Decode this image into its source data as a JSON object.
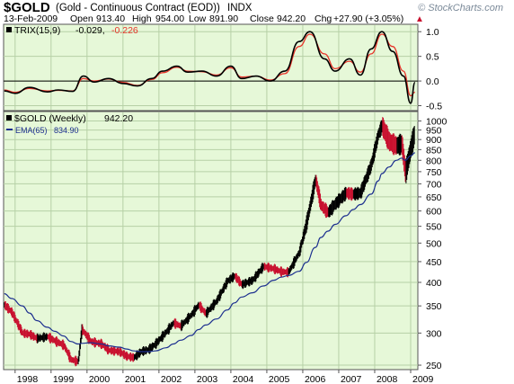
{
  "header": {
    "symbol": "$GOLD",
    "name": "(Gold - Continuous Contract (EOD))",
    "exchange": "INDX",
    "watermark": "© StockCharts.com",
    "date": "13-Feb-2009",
    "open_label": "Open",
    "open": "913.40",
    "high_label": "High",
    "high": "954.00",
    "low_label": "Low",
    "low": "891.90",
    "close_label": "Close",
    "close": "942.20",
    "chg_label": "Chg",
    "chg": "+27.90 (+3.05%)",
    "chg_arrow": "▲"
  },
  "trix_panel": {
    "label": "TRIX(15,9)",
    "value1": "-0.029,",
    "value2": "-0.226",
    "ticks": [
      "1.0",
      "0.5",
      "0.0",
      "-0.5"
    ],
    "colors": {
      "trix": "#000000",
      "signal": "#e8342a"
    }
  },
  "price_panel": {
    "label": "$GOLD (Weekly)",
    "value": "942.20",
    "ema_label": "EMA(65)",
    "ema_value": "834.90",
    "ticks": [
      "1000",
      "950",
      "900",
      "850",
      "800",
      "750",
      "700",
      "650",
      "600",
      "550",
      "500",
      "450",
      "400",
      "350",
      "300",
      "250"
    ]
  },
  "x_axis": {
    "labels": [
      "1998",
      "1999",
      "2000",
      "2001",
      "2002",
      "2003",
      "2004",
      "2005",
      "2006",
      "2007",
      "2008",
      "2009"
    ]
  },
  "colors": {
    "plot_bg": "#e6f8d8",
    "grid": "#b6d0a6",
    "ema": "#1c2f8f",
    "up": "#000000",
    "down": "#c8102e",
    "chg": "#c8102e"
  },
  "chart_data": [
    {
      "type": "line",
      "title": "TRIX(15,9)",
      "ylim": [
        -0.6,
        1.15
      ],
      "x": [
        1997.7,
        1998.0,
        1998.4,
        1998.9,
        1999.2,
        1999.6,
        1999.9,
        2000.2,
        2000.6,
        2001.0,
        2001.4,
        2001.8,
        2002.1,
        2002.5,
        2002.8,
        2003.2,
        2003.6,
        2004.0,
        2004.3,
        2004.7,
        2005.1,
        2005.5,
        2005.9,
        2006.2,
        2006.6,
        2006.9,
        2007.3,
        2007.6,
        2007.9,
        2008.2,
        2008.5,
        2008.8,
        2009.0,
        2009.12
      ],
      "series": [
        {
          "name": "TRIX",
          "values": [
            -0.2,
            -0.25,
            -0.13,
            -0.22,
            -0.18,
            -0.21,
            0.1,
            -0.02,
            0.05,
            -0.05,
            -0.1,
            0.05,
            0.2,
            0.3,
            0.18,
            0.2,
            0.1,
            0.3,
            0.05,
            0.1,
            0.0,
            0.2,
            0.8,
            1.0,
            0.45,
            0.2,
            0.45,
            0.12,
            0.65,
            1.0,
            0.6,
            0.1,
            -0.45,
            -0.029
          ]
        },
        {
          "name": "Signal",
          "values": [
            -0.18,
            -0.23,
            -0.15,
            -0.2,
            -0.19,
            -0.2,
            0.05,
            0.0,
            0.04,
            -0.03,
            -0.09,
            0.03,
            0.17,
            0.28,
            0.2,
            0.19,
            0.12,
            0.27,
            0.08,
            0.1,
            0.02,
            0.15,
            0.7,
            0.95,
            0.55,
            0.25,
            0.4,
            0.18,
            0.55,
            0.95,
            0.7,
            0.2,
            -0.3,
            -0.226
          ]
        }
      ]
    },
    {
      "type": "line",
      "title": "$GOLD (Weekly)",
      "ylim": [
        245,
        1050
      ],
      "y_scale": "log",
      "x": [
        1997.7,
        1997.9,
        1998.2,
        1998.4,
        1998.6,
        1998.9,
        1999.1,
        1999.35,
        1999.55,
        1999.75,
        1999.85,
        2000.1,
        2000.4,
        2000.6,
        2000.9,
        2001.1,
        2001.3,
        2001.5,
        2001.7,
        2001.9,
        2002.2,
        2002.4,
        2002.6,
        2002.9,
        2003.1,
        2003.3,
        2003.6,
        2003.9,
        2004.1,
        2004.3,
        2004.6,
        2004.9,
        2005.2,
        2005.4,
        2005.6,
        2005.9,
        2006.1,
        2006.35,
        2006.5,
        2006.7,
        2006.9,
        2007.2,
        2007.4,
        2007.6,
        2007.9,
        2008.1,
        2008.2,
        2008.4,
        2008.6,
        2008.75,
        2008.85,
        2009.0,
        2009.12
      ],
      "series": [
        {
          "name": "$GOLD",
          "values": [
            352,
            338,
            300,
            298,
            291,
            294,
            287,
            280,
            258,
            255,
            307,
            286,
            282,
            272,
            270,
            263,
            261,
            270,
            273,
            282,
            302,
            318,
            312,
            333,
            352,
            335,
            360,
            403,
            415,
            395,
            405,
            438,
            432,
            425,
            424,
            475,
            560,
            720,
            620,
            595,
            625,
            665,
            660,
            665,
            780,
            930,
            975,
            890,
            870,
            880,
            745,
            860,
            942.2
          ]
        },
        {
          "name": "EMA(65)",
          "values": [
            375,
            365,
            350,
            336,
            322,
            310,
            303,
            295,
            286,
            282,
            283,
            284,
            282,
            279,
            277,
            274,
            271,
            270,
            270,
            271,
            276,
            282,
            288,
            296,
            306,
            314,
            325,
            342,
            356,
            368,
            377,
            392,
            405,
            412,
            416,
            426,
            448,
            488,
            516,
            535,
            556,
            584,
            605,
            622,
            660,
            712,
            742,
            770,
            800,
            810,
            800,
            820,
            834.9
          ]
        }
      ]
    }
  ]
}
